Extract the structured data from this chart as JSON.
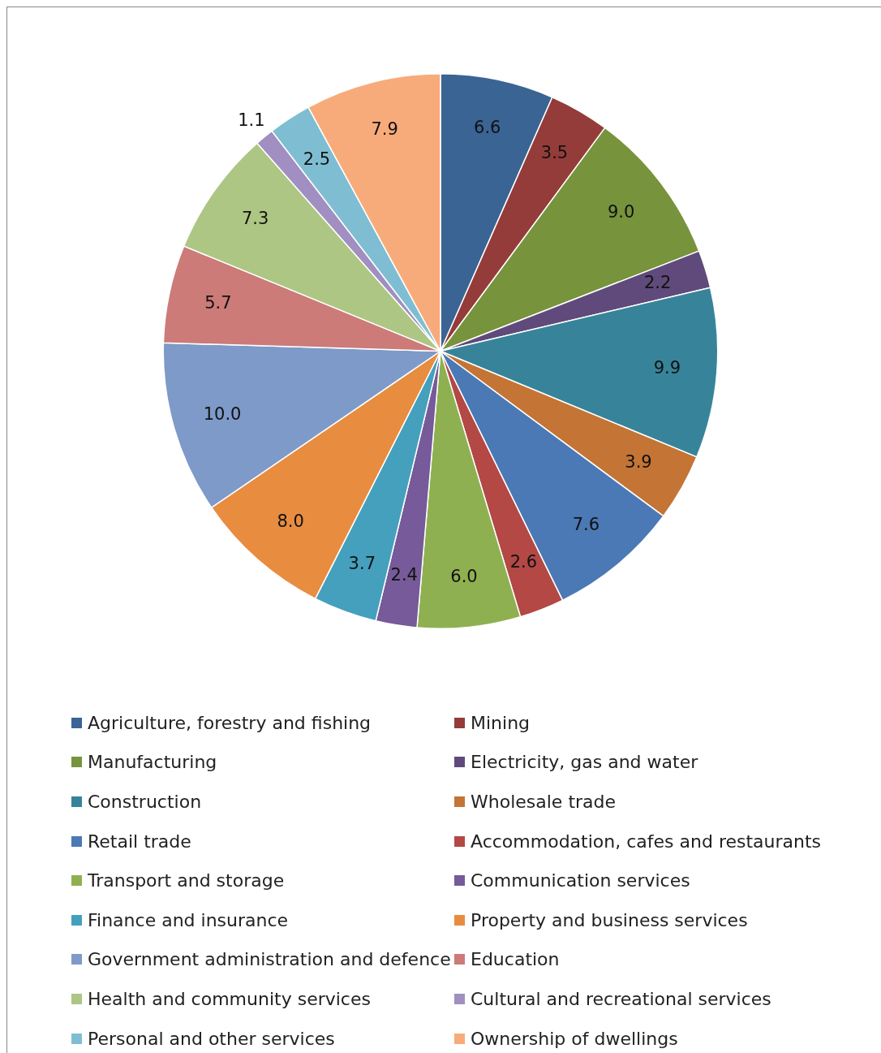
{
  "chart_data": {
    "type": "pie",
    "categories": [
      "Agriculture, forestry and fishing",
      "Mining",
      "Manufacturing",
      "Electricity, gas and water",
      "Construction",
      "Wholesale trade",
      "Retail trade",
      "Accommodation, cafes and restaurants",
      "Transport and storage",
      "Communication services",
      "Finance and insurance",
      "Property and business services",
      "Government administration and defence",
      "Education",
      "Health and community services",
      "Cultural and recreational services",
      "Personal and other services",
      "Ownership of dwellings"
    ],
    "values": [
      6.6,
      3.5,
      9.0,
      2.2,
      9.9,
      3.9,
      7.6,
      2.6,
      6.0,
      2.4,
      3.7,
      8.0,
      10.0,
      5.7,
      7.3,
      1.1,
      2.5,
      7.9
    ],
    "value_labels": [
      "6.6",
      "3.5",
      "9.0",
      "2.2",
      "9.9",
      "3.9",
      "7.6",
      "2.6",
      "6.0",
      "2.4",
      "3.7",
      "8.0",
      "10.0",
      "5.7",
      "7.3",
      "1.1",
      "2.5",
      "7.9"
    ],
    "colors": [
      "#3a6494",
      "#943c3a",
      "#77933c",
      "#604a7b",
      "#37849a",
      "#c47434",
      "#4a79b5",
      "#b34845",
      "#8fb050",
      "#765a99",
      "#44a0bc",
      "#e88c40",
      "#7d9ac8",
      "#cc7b78",
      "#adc684",
      "#a08fc0",
      "#7fbed2",
      "#f8ab7a"
    ],
    "legend": "bottom"
  }
}
